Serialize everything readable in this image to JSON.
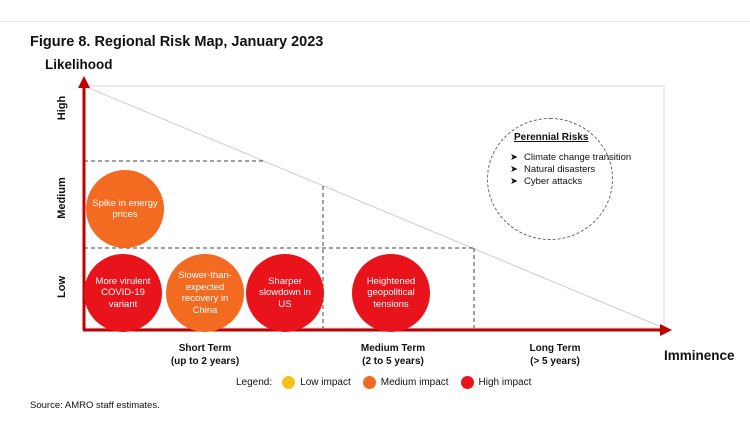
{
  "figure": {
    "title": "Figure 8. Regional Risk Map, January 2023",
    "y_axis_label": "Likelihood",
    "x_axis_label": "Imminence",
    "y_levels": [
      "Low",
      "Medium",
      "High"
    ],
    "x_categories": [
      {
        "line1": "Short Term",
        "line2": "(up to 2 years)"
      },
      {
        "line1": "Medium Term",
        "line2": "(2 to 5 years)"
      },
      {
        "line1": "Long Term",
        "line2": "(> 5 years)"
      }
    ]
  },
  "risks": [
    {
      "label": "Spike in energy prices",
      "likelihood": "Medium",
      "imminence": "Short Term",
      "impact": "Medium impact"
    },
    {
      "label": "More virulent COVID-19 variant",
      "likelihood": "Low",
      "imminence": "Short Term",
      "impact": "High impact"
    },
    {
      "label": "Slower-than-expected recovery in China",
      "likelihood": "Low",
      "imminence": "Short Term",
      "impact": "Medium impact"
    },
    {
      "label": "Sharper slowdown in US",
      "likelihood": "Low",
      "imminence": "Short Term",
      "impact": "High impact"
    },
    {
      "label": "Heightened geopolitical tensions",
      "likelihood": "Low",
      "imminence": "Medium Term",
      "impact": "High impact"
    }
  ],
  "perennial": {
    "title": "Perennial Risks",
    "items": [
      "Climate change transition",
      "Natural disasters",
      "Cyber attacks"
    ]
  },
  "legend": {
    "label": "Legend:",
    "items": [
      {
        "name": "Low impact",
        "color": "#f8c21a"
      },
      {
        "name": "Medium impact",
        "color": "#f26b21"
      },
      {
        "name": "High impact",
        "color": "#e8131b"
      }
    ]
  },
  "source": "Source: AMRO staff estimates.",
  "colors": {
    "axis": "#c00000",
    "high": "#e8131b",
    "medium": "#f26b21",
    "low": "#f8c21a"
  }
}
